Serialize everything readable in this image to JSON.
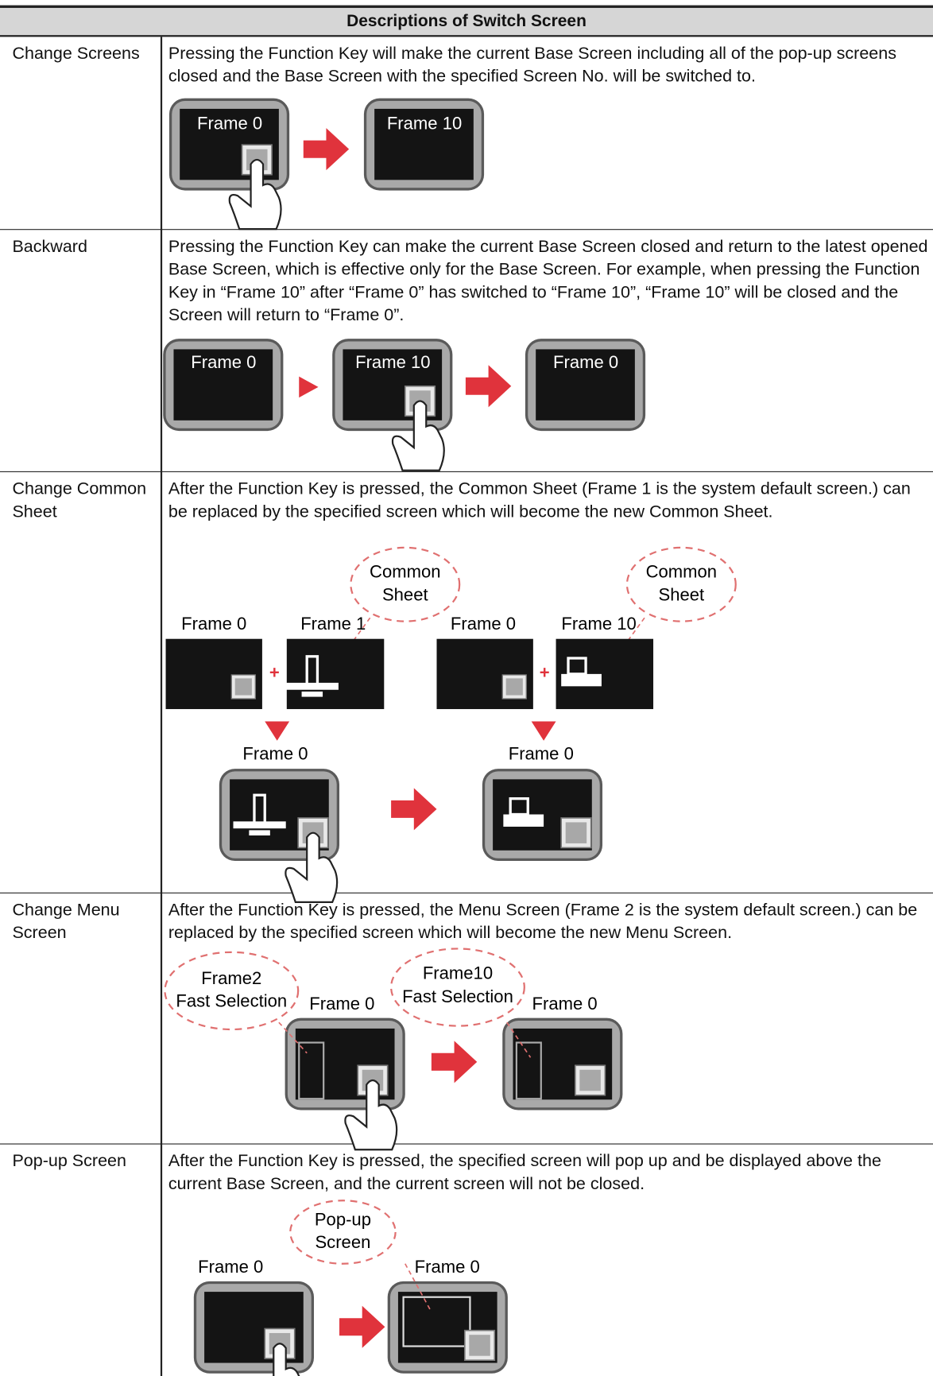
{
  "table": {
    "title": "Descriptions of Switch Screen",
    "rows": [
      {
        "name": "Change Screens",
        "description": "Pressing the Function Key will make the current Base Screen including all of the pop-up screens closed and the Base Screen with the specified Screen No. will be switched to.",
        "diagram_labels": [
          "Frame 0",
          "Frame 10"
        ]
      },
      {
        "name": "Backward",
        "description": "Pressing the Function Key can make the current Base Screen closed and return to the latest opened Base Screen, which is effective only for the Base Screen. For example, when pressing the Function Key in “Frame 10” after “Frame 0” has switched to “Frame 10”, “Frame 10” will be closed and the Screen will return to “Frame 0”.",
        "diagram_labels": [
          "Frame 0",
          "Frame 10",
          "Frame 0"
        ]
      },
      {
        "name": "Change Common Sheet",
        "description": "After the Function Key is pressed, the Common Sheet (Frame 1 is the system default screen.) can be replaced by the specified screen which will become the new Common Sheet.",
        "diagram_labels": [
          "Common",
          "Sheet",
          "Common",
          "Sheet",
          "Frame 0",
          "Frame 1",
          "Frame 0",
          "Frame 10",
          "Frame 0",
          "Frame 0"
        ]
      },
      {
        "name": "Change Menu Screen",
        "description": "After the Function Key is pressed, the Menu Screen (Frame 2 is the system default screen.) can be replaced by the specified screen which will become the new Menu Screen.",
        "diagram_labels": [
          "Frame2",
          "Fast Selection",
          "Frame 0",
          "Frame10",
          "Fast Selection",
          "Frame 0"
        ]
      },
      {
        "name": "Pop-up Screen",
        "description": "After the Function Key is pressed, the specified screen will pop up and be displayed above the current Base Screen, and the current screen will not be closed.",
        "diagram_labels": [
          "Pop-up",
          "Screen",
          "Frame 0",
          "Frame 0"
        ]
      }
    ]
  }
}
